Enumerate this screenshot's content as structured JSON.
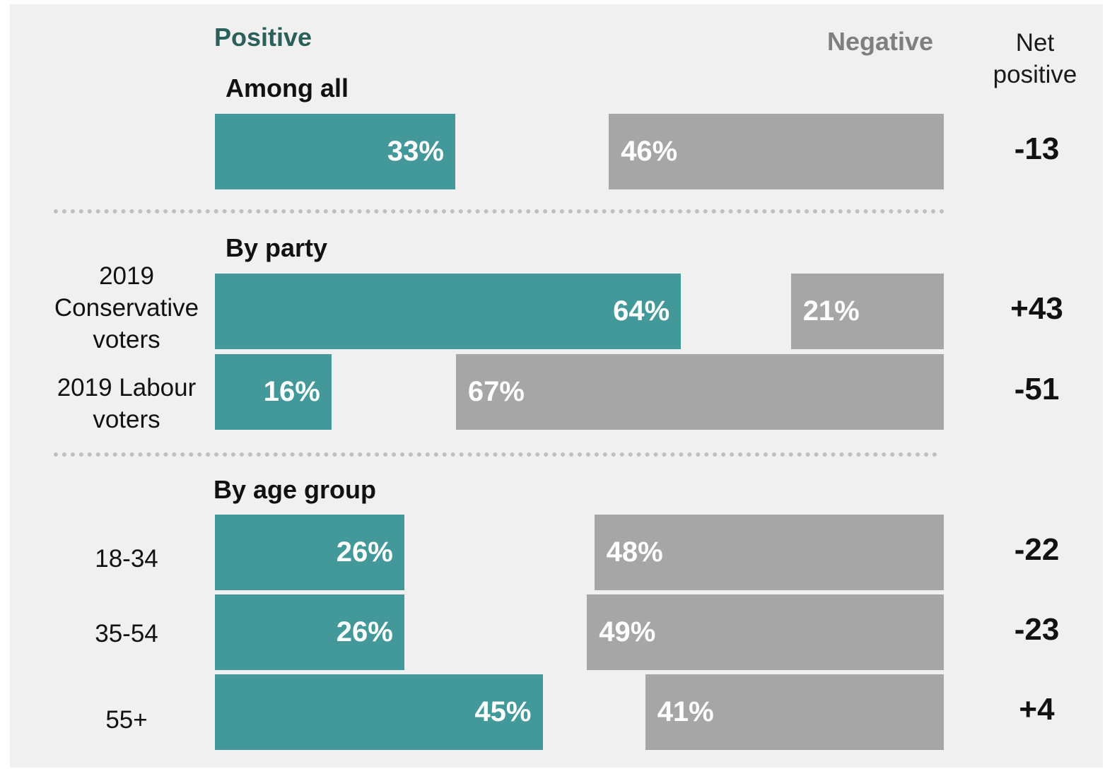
{
  "colors": {
    "positive": "#439999",
    "negative": "#a6a6a6",
    "positive_header": "#2a5f5a",
    "negative_header": "#7f7f7f"
  },
  "chart_data": {
    "type": "bar",
    "orientation": "horizontal",
    "headers": {
      "positive": "Positive",
      "negative": "Negative",
      "net": "Net\npositive"
    },
    "sections": [
      {
        "title": "Among all",
        "rows": [
          {
            "label": "",
            "positive": 33,
            "negative": 46,
            "positive_label": "33%",
            "negative_label": "46%",
            "net": "-13"
          }
        ]
      },
      {
        "title": "By party",
        "rows": [
          {
            "label": "2019\nConservative\nvoters",
            "positive": 64,
            "negative": 21,
            "positive_label": "64%",
            "negative_label": "21%",
            "net": "+43"
          },
          {
            "label": "2019 Labour\nvoters",
            "positive": 16,
            "negative": 67,
            "positive_label": "16%",
            "negative_label": "67%",
            "net": "-51"
          }
        ]
      },
      {
        "title": "By age group",
        "rows": [
          {
            "label": "18-34",
            "positive": 26,
            "negative": 48,
            "positive_label": "26%",
            "negative_label": "48%",
            "net": "-22"
          },
          {
            "label": "35-54",
            "positive": 26,
            "negative": 49,
            "positive_label": "26%",
            "negative_label": "49%",
            "net": "-23"
          },
          {
            "label": "55+",
            "positive": 45,
            "negative": 41,
            "positive_label": "45%",
            "negative_label": "41%",
            "net": "+4"
          }
        ]
      }
    ]
  }
}
